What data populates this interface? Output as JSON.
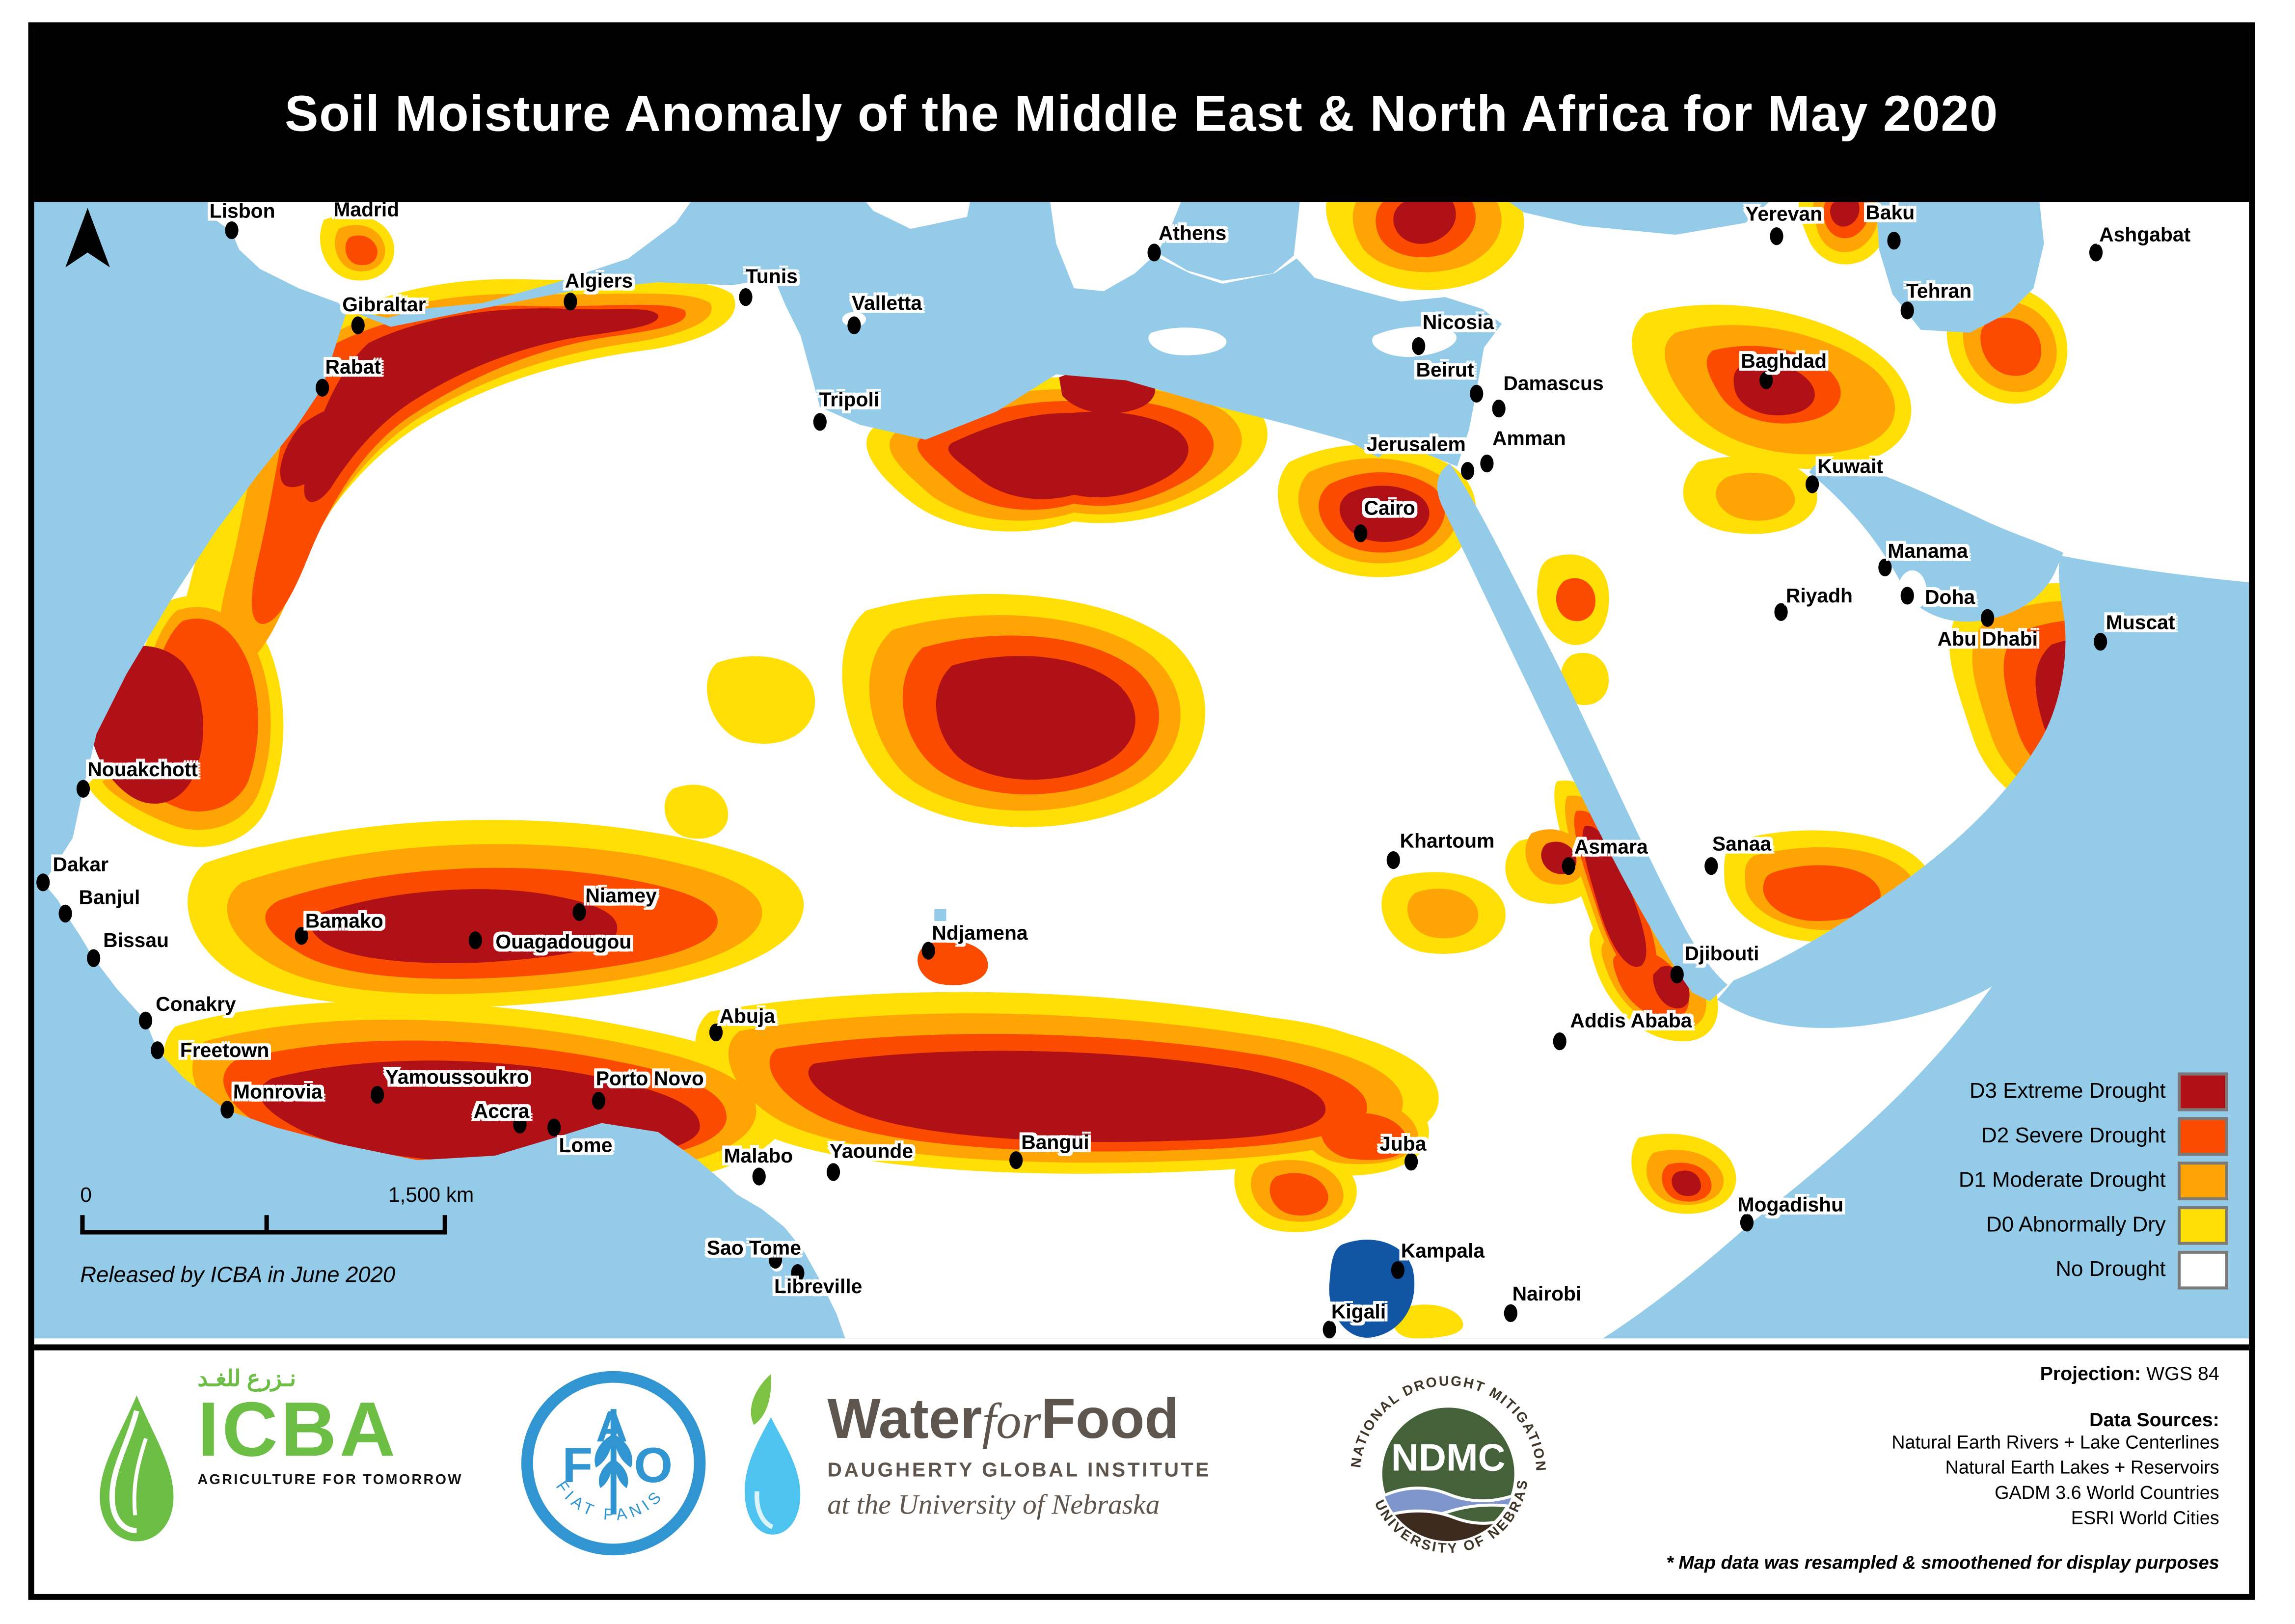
{
  "title": "Soil Moisture Anomaly of the Middle East & North Africa for May 2020",
  "colors": {
    "sea": "#94CBE8",
    "river": "#1E62B0",
    "lake": "#1255A4",
    "d0": "#FFDF05",
    "d1": "#FFA405",
    "d2": "#FA4B00",
    "d3": "#B01117",
    "nd": "#FFFFFF",
    "swatch_border": "#7A7A7A",
    "icba_green": "#6CBE45",
    "fao_blue": "#3095D0",
    "wff_drop": "#4FC3F0",
    "leaf_green": "#7DC242",
    "wff_text": "#5E564E",
    "ndmc_green": "#45613A",
    "ndmc_wave": "#7F96CC",
    "ndmc_soil": "#3E2B1F",
    "ndmc_text": "#3E3428"
  },
  "legend": {
    "items": [
      {
        "label": "D3 Extreme Drought",
        "color": "#B01117"
      },
      {
        "label": "D2 Severe Drought",
        "color": "#FA4B00"
      },
      {
        "label": "D1 Moderate Drought",
        "color": "#FFA405"
      },
      {
        "label": "D0 Abnormally Dry",
        "color": "#FFDF05"
      },
      {
        "label": "No Drought",
        "color": "#FFFFFF"
      }
    ]
  },
  "scale_bar": {
    "start": "0",
    "end": "1,500 km"
  },
  "release_note": "Released by ICBA in June 2020",
  "map": {
    "cities": [
      {
        "name": "Lisbon",
        "label": [
          9.4,
          0.8
        ],
        "dot": [
          8.9,
          2.5
        ]
      },
      {
        "name": "Madrid",
        "label": [
          15.0,
          0.6
        ],
        "dot": null
      },
      {
        "name": "Gibraltar",
        "label": [
          15.8,
          9.0
        ],
        "dot": [
          14.6,
          10.8
        ]
      },
      {
        "name": "Rabat",
        "label": [
          14.4,
          14.5
        ],
        "dot": [
          13.0,
          16.3
        ]
      },
      {
        "name": "Algiers",
        "label": [
          25.5,
          6.9
        ],
        "dot": [
          24.2,
          8.8
        ]
      },
      {
        "name": "Tunis",
        "label": [
          33.3,
          6.5
        ],
        "dot": [
          32.1,
          8.4
        ]
      },
      {
        "name": "Valletta",
        "label": [
          38.5,
          8.9
        ],
        "dot": [
          37.0,
          10.8
        ]
      },
      {
        "name": "Tripoli",
        "label": [
          36.8,
          17.4
        ],
        "dot": [
          35.5,
          19.3
        ]
      },
      {
        "name": "Athens",
        "label": [
          52.3,
          2.7
        ],
        "dot": [
          50.6,
          4.4
        ]
      },
      {
        "name": "Nicosia",
        "label": [
          64.3,
          10.6
        ],
        "dot": [
          62.5,
          12.7
        ]
      },
      {
        "name": "Beirut",
        "label": [
          63.7,
          14.8
        ],
        "dot": [
          65.1,
          16.9
        ]
      },
      {
        "name": "Damascus",
        "label": [
          68.6,
          15.9
        ],
        "dot": [
          66.1,
          18.2
        ]
      },
      {
        "name": "Jerusalem",
        "label": [
          62.4,
          21.3
        ],
        "dot": [
          64.7,
          23.7
        ]
      },
      {
        "name": "Amman",
        "label": [
          67.5,
          20.8
        ],
        "dot": [
          65.6,
          23.0
        ]
      },
      {
        "name": "Cairo",
        "label": [
          61.2,
          26.9
        ],
        "dot": [
          59.9,
          29.2
        ]
      },
      {
        "name": "Yerevan",
        "label": [
          79.0,
          1.0
        ],
        "dot": [
          78.7,
          3.0
        ]
      },
      {
        "name": "Baku",
        "label": [
          83.8,
          0.9
        ],
        "dot": [
          84.0,
          3.4
        ]
      },
      {
        "name": "Ashgabat",
        "label": [
          95.3,
          2.9
        ],
        "dot": [
          93.1,
          4.4
        ]
      },
      {
        "name": "Tehran",
        "label": [
          86.0,
          7.8
        ],
        "dot": [
          84.6,
          9.5
        ]
      },
      {
        "name": "Baghdad",
        "label": [
          79.0,
          14.0
        ],
        "dot": [
          78.2,
          15.7
        ]
      },
      {
        "name": "Kuwait",
        "label": [
          82.0,
          23.3
        ],
        "dot": [
          80.3,
          24.8
        ]
      },
      {
        "name": "Manama",
        "label": [
          85.5,
          30.7
        ],
        "dot": [
          83.6,
          32.2
        ]
      },
      {
        "name": "Riyadh",
        "label": [
          80.6,
          34.6
        ],
        "dot": [
          78.9,
          36.1
        ]
      },
      {
        "name": "Doha",
        "label": [
          86.5,
          34.8
        ],
        "dot": [
          84.6,
          34.6
        ]
      },
      {
        "name": "Abu Dhabi",
        "label": [
          88.2,
          38.4
        ],
        "dot": [
          88.2,
          36.6
        ]
      },
      {
        "name": "Muscat",
        "label": [
          95.1,
          37.0
        ],
        "dot": [
          93.3,
          38.7
        ]
      },
      {
        "name": "Nouakchott",
        "label": [
          4.9,
          49.9
        ],
        "dot": [
          2.2,
          51.6
        ]
      },
      {
        "name": "Dakar",
        "label": [
          2.1,
          58.3
        ],
        "dot": [
          0.4,
          59.9
        ]
      },
      {
        "name": "Banjul",
        "label": [
          3.4,
          61.2
        ],
        "dot": [
          1.4,
          62.6
        ]
      },
      {
        "name": "Bissau",
        "label": [
          4.6,
          65.0
        ],
        "dot": [
          2.7,
          66.5
        ]
      },
      {
        "name": "Conakry",
        "label": [
          7.3,
          70.6
        ],
        "dot": [
          5.0,
          72.0
        ]
      },
      {
        "name": "Freetown",
        "label": [
          8.6,
          74.6
        ],
        "dot": [
          5.6,
          74.6
        ]
      },
      {
        "name": "Monrovia",
        "label": [
          11.0,
          78.3
        ],
        "dot": [
          8.7,
          79.9
        ]
      },
      {
        "name": "Bamako",
        "label": [
          14.0,
          63.3
        ],
        "dot": [
          12.1,
          64.6
        ]
      },
      {
        "name": "Ouagadougou",
        "label": [
          23.9,
          65.1
        ],
        "dot": [
          19.9,
          65.0
        ]
      },
      {
        "name": "Niamey",
        "label": [
          26.5,
          61.0
        ],
        "dot": [
          24.6,
          62.5
        ]
      },
      {
        "name": "Yamoussoukro",
        "label": [
          19.1,
          77.0
        ],
        "dot": [
          15.5,
          78.6
        ]
      },
      {
        "name": "Accra",
        "label": [
          21.1,
          80.0
        ],
        "dot": [
          21.9,
          81.2
        ]
      },
      {
        "name": "Lome",
        "label": [
          24.9,
          83.0
        ],
        "dot": [
          23.5,
          81.4
        ]
      },
      {
        "name": "Porto Novo",
        "label": [
          27.8,
          77.1
        ],
        "dot": [
          25.5,
          79.1
        ]
      },
      {
        "name": "Abuja",
        "label": [
          32.2,
          71.6
        ],
        "dot": [
          30.8,
          73.1
        ]
      },
      {
        "name": "Malabo",
        "label": [
          32.7,
          83.9
        ],
        "dot": [
          32.7,
          85.8
        ]
      },
      {
        "name": "Sao Tome",
        "label": [
          32.5,
          92.0
        ],
        "dot": [
          33.5,
          93.1
        ]
      },
      {
        "name": "Libreville",
        "label": [
          35.4,
          95.4
        ],
        "dot": [
          34.5,
          94.2
        ]
      },
      {
        "name": "Yaounde",
        "label": [
          37.8,
          83.5
        ],
        "dot": [
          36.1,
          85.4
        ]
      },
      {
        "name": "Ndjamena",
        "label": [
          42.7,
          64.3
        ],
        "dot": [
          40.4,
          65.9
        ]
      },
      {
        "name": "Bangui",
        "label": [
          46.1,
          82.7
        ],
        "dot": [
          44.3,
          84.3
        ]
      },
      {
        "name": "Khartoum",
        "label": [
          63.8,
          56.2
        ],
        "dot": [
          61.4,
          57.9
        ]
      },
      {
        "name": "Asmara",
        "label": [
          71.2,
          56.7
        ],
        "dot": [
          69.3,
          58.4
        ]
      },
      {
        "name": "Sanaa",
        "label": [
          77.1,
          56.5
        ],
        "dot": [
          75.7,
          58.4
        ]
      },
      {
        "name": "Djibouti",
        "label": [
          76.2,
          66.1
        ],
        "dot": [
          74.2,
          68.0
        ]
      },
      {
        "name": "Addis Ababa",
        "label": [
          72.1,
          72.0
        ],
        "dot": [
          68.9,
          73.9
        ]
      },
      {
        "name": "Juba",
        "label": [
          61.8,
          82.9
        ],
        "dot": [
          62.2,
          84.4
        ]
      },
      {
        "name": "Kampala",
        "label": [
          63.6,
          92.3
        ],
        "dot": [
          61.6,
          94.0
        ]
      },
      {
        "name": "Kigali",
        "label": [
          59.8,
          97.6
        ],
        "dot": [
          58.5,
          99.2
        ]
      },
      {
        "name": "Nairobi",
        "label": [
          68.3,
          96.1
        ],
        "dot": [
          66.7,
          97.8
        ]
      },
      {
        "name": "Mogadishu",
        "label": [
          79.3,
          88.2
        ],
        "dot": [
          77.3,
          89.8
        ]
      }
    ]
  },
  "footer": {
    "icba": {
      "arabic": "نـزرع للغـد",
      "name": "ICBA",
      "tagline": "AGRICULTURE FOR TOMORROW"
    },
    "fao": {
      "name": "FAO",
      "motto": "FIAT    PANIS"
    },
    "wff": {
      "word1": "Water",
      "word2": "for",
      "word3": "Food",
      "line2": "DAUGHERTY GLOBAL INSTITUTE",
      "line3": "at the University of Nebraska"
    },
    "ndmc": {
      "arc_top": "NATIONAL DROUGHT MITIGATION CENTER",
      "arc_bottom": "UNIVERSITY OF NEBRASKA",
      "name": "NDMC"
    },
    "projection_label": "Projection:",
    "projection_value": "WGS 84",
    "data_sources_label": "Data Sources:",
    "data_sources": [
      "Natural Earth Rivers + Lake Centerlines",
      "Natural Earth Lakes + Reservoirs",
      "GADM 3.6 World Countries",
      "ESRI World Cities"
    ],
    "footnote": "* Map data was resampled & smoothened for display purposes"
  }
}
